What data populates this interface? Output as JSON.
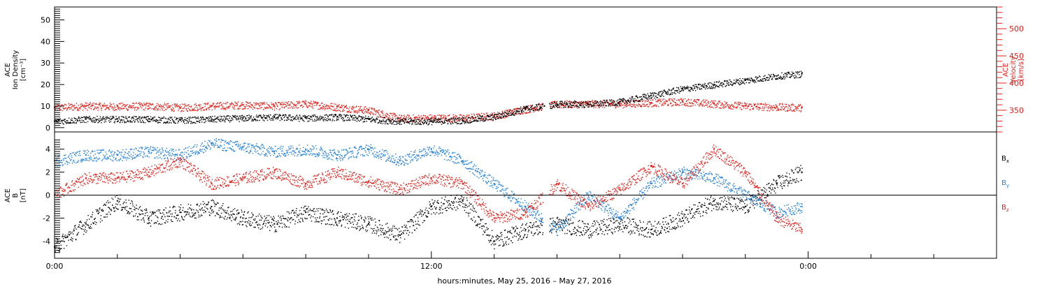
{
  "x_axis": {
    "title": "hours:minutes, May 25, 2016 – May 27, 2016",
    "ticks": [
      {
        "label": "0:00",
        "t": 0
      },
      {
        "label": "12:00",
        "t": 12
      },
      {
        "label": "0:00",
        "t": 24
      }
    ],
    "range": [
      0,
      30
    ]
  },
  "colors": {
    "black": "#000000",
    "red": "#e0201a",
    "blue": "#1f7fd6"
  },
  "chart_data": [
    {
      "type": "scatter",
      "panel": "top",
      "ylabel_left": [
        "ACE",
        "Ion Density",
        "[cm⁻³]"
      ],
      "ylabel_right": [
        "ACE",
        "Velocity",
        "[km/s]"
      ],
      "ylim_left": [
        -2,
        56
      ],
      "yticks_left": [
        0,
        10,
        20,
        30,
        40,
        50
      ],
      "ylim_right": [
        310,
        540
      ],
      "yticks_right": [
        350,
        400,
        450,
        500
      ],
      "series": [
        {
          "key": "density",
          "axis": "left",
          "color": "black",
          "x": [
            0,
            1,
            2,
            3,
            4,
            5,
            6,
            7,
            8,
            9,
            10,
            11,
            12,
            13,
            14,
            15,
            15.6,
            16,
            17,
            18,
            19,
            20,
            21,
            22,
            23,
            23.8
          ],
          "y": [
            3,
            4,
            4,
            4,
            3.5,
            4,
            4.5,
            5,
            4.5,
            5,
            4,
            3,
            3,
            3.5,
            5,
            9,
            10,
            11,
            11,
            12,
            15,
            18,
            20,
            22,
            24,
            25
          ]
        },
        {
          "key": "velocity",
          "axis": "right",
          "color": "red",
          "x": [
            0,
            1,
            2,
            3,
            4,
            5,
            6,
            7,
            8,
            9,
            10,
            11,
            12,
            13,
            14,
            15,
            15.6,
            16,
            17,
            18,
            19,
            20,
            21,
            22,
            23,
            23.8
          ],
          "y": [
            355,
            358,
            357,
            358,
            355,
            358,
            360,
            358,
            362,
            356,
            350,
            335,
            336,
            336,
            340,
            352,
            358,
            361,
            362,
            362,
            364,
            366,
            362,
            358,
            356,
            355
          ]
        }
      ]
    },
    {
      "type": "scatter",
      "panel": "bottom",
      "ylabel_left": [
        "ACE",
        "B",
        "[nT]"
      ],
      "ylim": [
        -5.5,
        5.5
      ],
      "yticks": [
        -4,
        -2,
        0,
        2,
        4
      ],
      "legend": [
        {
          "label": "B",
          "sub": "x",
          "color": "black"
        },
        {
          "label": "B",
          "sub": "y",
          "color": "blue"
        },
        {
          "label": "B",
          "sub": "z",
          "color": "red"
        }
      ],
      "series": [
        {
          "key": "bx",
          "color": "black",
          "x": [
            0,
            1,
            2,
            3,
            4,
            5,
            6,
            7,
            8,
            9,
            10,
            11,
            12,
            13,
            14,
            15,
            16,
            17,
            18,
            19,
            20,
            21,
            22,
            23,
            23.8
          ],
          "y": [
            -4.5,
            -2.5,
            -0.5,
            -2,
            -1.5,
            -1,
            -2,
            -2.5,
            -1.5,
            -2,
            -2.5,
            -3.5,
            -1,
            -0.5,
            -4,
            -3,
            -2.5,
            -3,
            -2.5,
            -3,
            -2,
            -0.5,
            -1,
            1,
            2
          ]
        },
        {
          "key": "by",
          "color": "blue",
          "x": [
            0,
            1,
            2,
            3,
            4,
            5,
            6,
            7,
            8,
            9,
            10,
            11,
            12,
            13,
            14,
            15,
            16,
            17,
            18,
            19,
            20,
            21,
            22,
            23,
            23.8
          ],
          "y": [
            3,
            3.5,
            3.5,
            3.8,
            3.5,
            4.5,
            4.2,
            3.8,
            4,
            3.5,
            4,
            3,
            4,
            3,
            1,
            -1,
            -3,
            0,
            -2,
            1,
            2,
            1.5,
            0,
            -1.5,
            -1
          ]
        },
        {
          "key": "bz",
          "color": "red",
          "x": [
            0,
            1,
            2,
            3,
            4,
            5,
            6,
            7,
            8,
            9,
            10,
            11,
            12,
            13,
            14,
            15,
            16,
            17,
            18,
            19,
            20,
            21,
            22,
            23,
            23.8
          ],
          "y": [
            0,
            1.5,
            1.5,
            2,
            3,
            1,
            1.5,
            2,
            1,
            2,
            1.2,
            0.5,
            1.5,
            1,
            -2,
            -1.5,
            1,
            -1,
            0.5,
            2.5,
            1,
            4,
            2,
            -2,
            -3
          ]
        }
      ]
    }
  ]
}
